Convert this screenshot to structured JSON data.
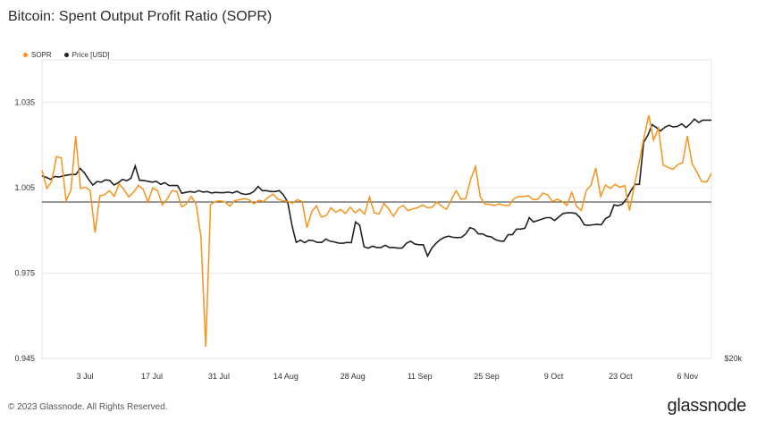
{
  "title": "Bitcoin: Spent Output Profit Ratio (SOPR)",
  "footer": "© 2023 Glassnode. All Rights Reserved.",
  "logo": "glassnode",
  "colors": {
    "sopr": "#f7931a",
    "price": "#222222",
    "grid": "#ececec",
    "baseline": "#333333"
  },
  "chart_data": {
    "type": "line",
    "legend": [
      {
        "name": "SOPR",
        "color": "#f7931a"
      },
      {
        "name": "Price [USD]",
        "color": "#222222"
      }
    ],
    "legend_position": "top-left",
    "x_tick_labels": [
      "3 Jul",
      "17 Jul",
      "31 Jul",
      "14 Aug",
      "28 Aug",
      "11 Sep",
      "25 Sep",
      "9 Oct",
      "23 Oct",
      "6 Nov"
    ],
    "y_tick_labels": [
      "1.035",
      "1.005",
      "0.975",
      "0.945"
    ],
    "y_right_tick_labels": [
      "$20k"
    ],
    "ylim": [
      0.945,
      1.05
    ],
    "baseline": 1.0,
    "grid": true,
    "x_start": "2023-06-24",
    "series": [
      {
        "name": "SOPR",
        "values": [
          1.0112,
          1.0048,
          1.0072,
          1.016,
          1.0155,
          1.0005,
          1.0042,
          1.0232,
          1.0048,
          1.0052,
          1.0041,
          0.9892,
          1.0022,
          1.0026,
          1.004,
          1.002,
          1.0064,
          1.0045,
          1.0018,
          1.0034,
          1.0059,
          1.0045,
          1.0,
          1.005,
          1.004,
          0.999,
          1.0011,
          1.004,
          1.0037,
          0.9983,
          0.9994,
          1.002,
          0.9992,
          0.9879,
          0.9491,
          0.9991,
          1.0002,
          1.0004,
          1.0,
          0.9985,
          1.0005,
          1.0008,
          1.0012,
          1.0008,
          0.9994,
          1.0006,
          1.0002,
          1.0017,
          1.0028,
          1.001,
          1.0005,
          1.0002,
          0.9996,
          1.0008,
          1.0002,
          0.991,
          0.9966,
          0.9987,
          0.9947,
          0.9952,
          0.998,
          0.9964,
          0.9974,
          0.996,
          0.9982,
          0.9962,
          0.9975,
          0.9957,
          1.0018,
          0.9962,
          0.9958,
          0.9995,
          0.9976,
          0.995,
          0.9978,
          0.9988,
          0.997,
          0.9976,
          0.998,
          0.999,
          0.998,
          0.9982,
          1.0,
          0.9985,
          0.9975,
          1.0008,
          1.004,
          1.001,
          1.0012,
          1.008,
          1.0125,
          1.0018,
          0.9993,
          0.9992,
          0.9988,
          0.9994,
          0.9988,
          0.9988,
          1.0012,
          1.002,
          1.002,
          1.0022,
          1.0008,
          1.001,
          1.0032,
          1.0025,
          1.0002,
          1.001,
          1.0002,
          0.9988,
          1.0034,
          0.9985,
          0.997,
          1.004,
          1.006,
          1.012,
          1.002,
          1.006,
          1.0048,
          1.0062,
          1.0052,
          1.0058,
          0.997,
          1.006,
          1.014,
          1.0228,
          1.0305,
          1.0218,
          1.026,
          1.013,
          1.0122,
          1.0115,
          1.0132,
          1.0138,
          1.0232,
          1.0135,
          1.0105,
          1.0072,
          1.007,
          1.01
        ]
      },
      {
        "name": "Price [USD]",
        "values": [
          1.0092,
          1.0087,
          1.008,
          1.009,
          1.0088,
          1.0092,
          1.0095,
          1.0097,
          1.0097,
          1.0118,
          1.0103,
          1.008,
          1.006,
          1.0072,
          1.007,
          1.0078,
          1.0076,
          1.006,
          1.0068,
          1.008,
          1.0075,
          1.0084,
          1.0127,
          1.0077,
          1.0076,
          1.0073,
          1.007,
          1.0073,
          1.0062,
          1.0068,
          1.0058,
          1.0058,
          1.0058,
          1.0031,
          1.0034,
          1.0037,
          1.0034,
          1.004,
          1.0035,
          1.0037,
          1.0032,
          1.0034,
          1.0033,
          1.0033,
          1.0035,
          1.0032,
          1.0038,
          1.003,
          1.0027,
          1.0029,
          1.0037,
          1.0055,
          1.004,
          1.004,
          1.0037,
          1.0037,
          1.004,
          1.0025,
          1.0,
          0.9918,
          0.9858,
          0.9866,
          0.9857,
          0.9866,
          0.9864,
          0.9858,
          0.9858,
          0.987,
          0.9862,
          0.986,
          0.9856,
          0.9855,
          0.9858,
          0.9857,
          0.993,
          0.9918,
          0.9843,
          0.9838,
          0.9845,
          0.984,
          0.984,
          0.9848,
          0.984,
          0.984,
          0.9838,
          0.9838,
          0.9855,
          0.9862,
          0.9852,
          0.985,
          0.985,
          0.981,
          0.9838,
          0.9855,
          0.9868,
          0.9876,
          0.988,
          0.9876,
          0.9875,
          0.9876,
          0.9888,
          0.991,
          0.9905,
          0.9888,
          0.9888,
          0.988,
          0.9878,
          0.9868,
          0.9863,
          0.9862,
          0.9885,
          0.9885,
          0.9905,
          0.9905,
          0.9908,
          0.9945,
          0.993,
          0.9935,
          0.994,
          0.9945,
          0.9945,
          0.9935,
          0.9948,
          0.996,
          0.9962,
          0.9962,
          0.996,
          0.9945,
          0.992,
          0.9918,
          0.992,
          0.9922,
          0.992,
          0.9942,
          0.995,
          0.999,
          0.9987,
          0.9993,
          1.0012,
          1.004,
          1.0062,
          1.0062,
          1.021,
          1.0235,
          1.0272,
          1.0262,
          1.025,
          1.0263,
          1.027,
          1.0264,
          1.0266,
          1.0275,
          1.0262,
          1.0275,
          1.0292,
          1.028,
          1.0288,
          1.0288,
          1.0288
        ]
      }
    ]
  }
}
